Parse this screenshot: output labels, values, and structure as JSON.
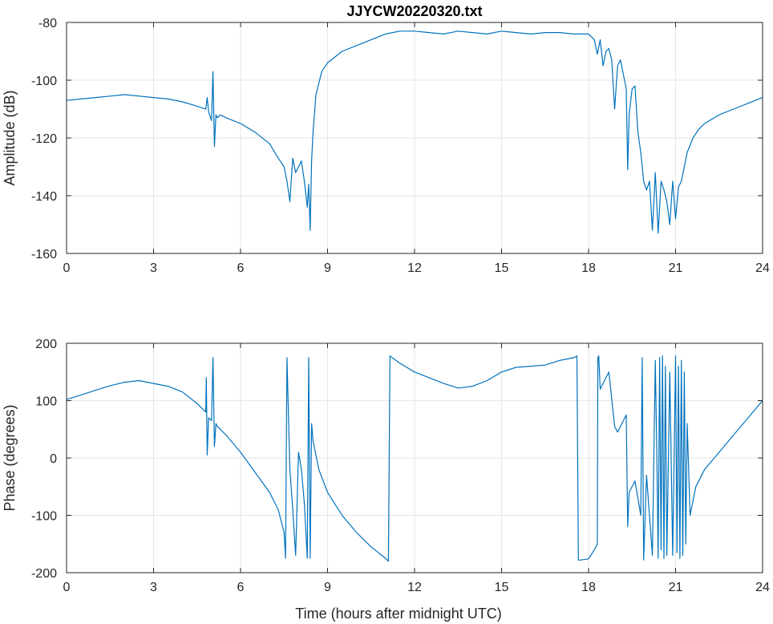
{
  "chart_data": [
    {
      "type": "line",
      "title": "JJYCW20220320.txt",
      "xlabel": "",
      "ylabel": "Amplitude (dB)",
      "xlim": [
        0,
        24
      ],
      "ylim": [
        -160,
        -80
      ],
      "xticks": [
        "0",
        "3",
        "6",
        "9",
        "12",
        "15",
        "18",
        "21",
        "24"
      ],
      "yticks": [
        "-80",
        "-100",
        "-120",
        "-140",
        "-160"
      ],
      "grid": true,
      "line_color": "#0072bd",
      "series": [
        {
          "x": [
            0,
            0.5,
            1,
            1.5,
            2,
            2.5,
            3,
            3.5,
            4,
            4.5,
            4.8,
            4.85,
            4.9,
            5.0,
            5.05,
            5.1,
            5.15,
            5.2,
            5.3,
            5.5,
            6,
            6.5,
            7,
            7.3,
            7.5,
            7.6,
            7.7,
            7.8,
            7.9,
            8.0,
            8.1,
            8.2,
            8.3,
            8.35,
            8.4,
            8.45,
            8.5,
            8.6,
            8.8,
            9.0,
            9.5,
            10,
            10.5,
            11,
            11.5,
            12,
            12.5,
            13,
            13.5,
            14,
            14.5,
            15,
            15.5,
            16,
            16.5,
            17,
            17.5,
            18,
            18.2,
            18.3,
            18.4,
            18.5,
            18.6,
            18.7,
            18.8,
            18.9,
            19.0,
            19.1,
            19.3,
            19.35,
            19.4,
            19.5,
            19.6,
            19.7,
            19.8,
            19.9,
            20.0,
            20.1,
            20.2,
            20.3,
            20.4,
            20.5,
            20.6,
            20.7,
            20.8,
            20.9,
            21.0,
            21.1,
            21.2,
            21.3,
            21.4,
            21.6,
            21.8,
            22,
            22.5,
            23,
            23.5,
            24
          ],
          "y": [
            -107,
            -106.5,
            -106,
            -105.5,
            -105,
            -105.5,
            -106,
            -106.5,
            -107.5,
            -109,
            -110,
            -106,
            -111,
            -114,
            -97,
            -123,
            -112,
            -113,
            -112,
            -113,
            -115,
            -118,
            -122,
            -127,
            -130,
            -135,
            -142,
            -127,
            -132,
            -130,
            -128,
            -135,
            -144,
            -136,
            -152,
            -128,
            -118,
            -105,
            -97,
            -94,
            -90,
            -88,
            -86,
            -84,
            -83,
            -83,
            -83.5,
            -84,
            -83,
            -83.5,
            -84,
            -83,
            -83.5,
            -84,
            -83.5,
            -83.5,
            -84,
            -84,
            -86,
            -91,
            -86,
            -95,
            -90,
            -89,
            -93,
            -110,
            -95,
            -93,
            -103,
            -131,
            -112,
            -103,
            -102,
            -118,
            -125,
            -135,
            -138,
            -135,
            -152,
            -132,
            -153,
            -135,
            -138,
            -142,
            -150,
            -135,
            -148,
            -137,
            -135,
            -130,
            -125,
            -120,
            -117,
            -115,
            -112,
            -110,
            -108,
            -106
          ]
        }
      ]
    },
    {
      "type": "line",
      "title": "",
      "xlabel": "Time (hours after midnight UTC)",
      "ylabel": "Phase (degrees)",
      "xlim": [
        0,
        24
      ],
      "ylim": [
        -200,
        200
      ],
      "xticks": [
        "0",
        "3",
        "6",
        "9",
        "12",
        "15",
        "18",
        "21",
        "24"
      ],
      "yticks": [
        "200",
        "100",
        "0",
        "-100",
        "-200"
      ],
      "grid": true,
      "line_color": "#0072bd",
      "series": [
        {
          "x": [
            0,
            0.5,
            1,
            1.5,
            2,
            2.5,
            3,
            3.5,
            4,
            4.5,
            4.8,
            4.82,
            4.85,
            4.9,
            5.0,
            5.05,
            5.1,
            5.15,
            5.2,
            5.5,
            6,
            6.5,
            7,
            7.3,
            7.5,
            7.55,
            7.6,
            7.7,
            7.8,
            7.9,
            8.0,
            8.1,
            8.2,
            8.3,
            8.35,
            8.4,
            8.45,
            8.5,
            8.7,
            9.0,
            9.5,
            10,
            10.5,
            11,
            11.1,
            11.15,
            11.2,
            11.5,
            12,
            12.5,
            13,
            13.5,
            14,
            14.5,
            15,
            15.5,
            16,
            16.5,
            17,
            17.5,
            17.6,
            17.65,
            17.7,
            18.0,
            18.2,
            18.3,
            18.32,
            18.35,
            18.4,
            18.6,
            18.7,
            18.9,
            19.0,
            19.2,
            19.3,
            19.35,
            19.4,
            19.6,
            19.8,
            19.85,
            19.9,
            20.0,
            20.2,
            20.3,
            20.35,
            20.4,
            20.45,
            20.5,
            20.55,
            20.6,
            20.65,
            20.7,
            20.8,
            20.9,
            21.0,
            21.05,
            21.1,
            21.15,
            21.2,
            21.25,
            21.3,
            21.35,
            21.4,
            21.5,
            21.7,
            22,
            22.5,
            23,
            23.5,
            24
          ],
          "y": [
            102,
            110,
            118,
            126,
            132,
            135,
            130,
            125,
            115,
            95,
            80,
            140,
            5,
            70,
            65,
            175,
            20,
            60,
            55,
            40,
            10,
            -25,
            -60,
            -90,
            -130,
            -175,
            175,
            -20,
            -90,
            -170,
            10,
            -20,
            -80,
            -175,
            175,
            -175,
            60,
            30,
            -20,
            -60,
            -100,
            -130,
            -155,
            -175,
            -180,
            178,
            176,
            165,
            150,
            140,
            130,
            122,
            125,
            135,
            150,
            158,
            160,
            162,
            170,
            175,
            178,
            -178,
            -178,
            -176,
            -160,
            -150,
            175,
            178,
            120,
            140,
            150,
            55,
            45,
            65,
            75,
            -120,
            -60,
            -40,
            -100,
            175,
            -178,
            -30,
            -170,
            170,
            20,
            -175,
            175,
            -160,
            178,
            -175,
            160,
            -170,
            150,
            -170,
            178,
            -165,
            160,
            -175,
            170,
            -170,
            150,
            -150,
            60,
            -100,
            -50,
            -20,
            10,
            40,
            70,
            100
          ]
        }
      ]
    }
  ]
}
